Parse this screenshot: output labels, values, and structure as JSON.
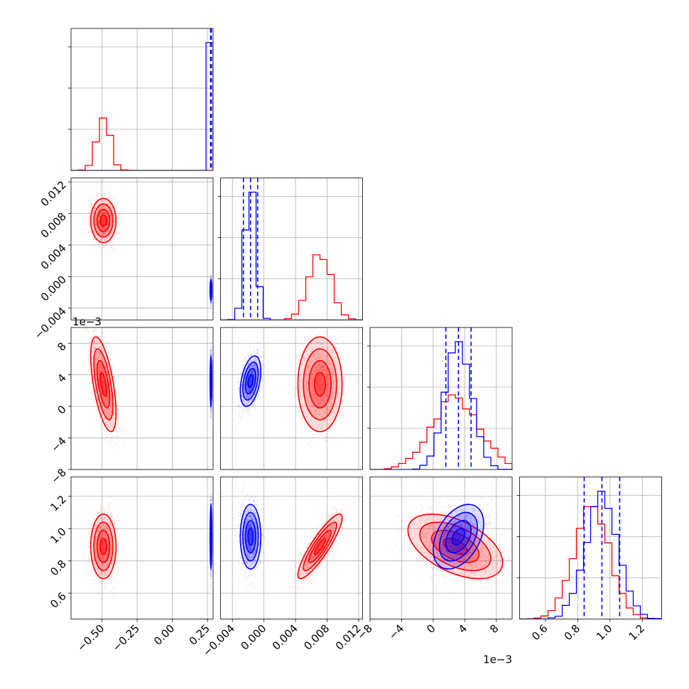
{
  "figure": {
    "width": 970,
    "height": 970
  },
  "colors": {
    "series_a": "#ff0000",
    "series_b": "#0000ff",
    "grid": "#b0b0b0"
  },
  "chart_data": {
    "type": "corner",
    "description_note": "",
    "parameters": [
      {
        "index": 0,
        "range": [
          -0.72,
          0.29
        ],
        "ticks": [
          -0.5,
          -0.25,
          0.0,
          0.25
        ],
        "tick_labels": [
          "−0.50",
          "−0.25",
          "0.00",
          "0.25"
        ],
        "offset_label": ""
      },
      {
        "index": 1,
        "range": [
          -0.0055,
          0.0125
        ],
        "ticks": [
          -0.004,
          0.0,
          0.004,
          0.008,
          0.012
        ],
        "tick_labels": [
          "−0.004",
          "0.000",
          "0.004",
          "0.008",
          "0.012"
        ],
        "offset_label": ""
      },
      {
        "index": 2,
        "range": [
          -8,
          10
        ],
        "ticks": [
          -8,
          -4,
          0,
          4,
          8
        ],
        "tick_labels": [
          "−8",
          "−4",
          "0",
          "4",
          "8"
        ],
        "offset_label": "1e−3"
      },
      {
        "index": 3,
        "range": [
          0.44,
          1.32
        ],
        "ticks": [
          0.6,
          0.8,
          1.0,
          1.2
        ],
        "tick_labels": [
          "0.6",
          "0.8",
          "1.0",
          "1.2"
        ],
        "offset_label": ""
      }
    ],
    "series": [
      {
        "color": "#ff0000",
        "mean": [
          -0.49,
          0.0071,
          2.8,
          0.89
        ],
        "std": [
          0.045,
          0.0014,
          3.0,
          0.1
        ],
        "corr": [
          [
            0,
            2,
            -0.6
          ],
          [
            1,
            3,
            0.88
          ],
          [
            2,
            3,
            -0.5
          ]
        ],
        "quantiles": []
      },
      {
        "color": "#0000ff",
        "mean": [
          0.275,
          -0.0017,
          3.2,
          0.95
        ],
        "std": [
          0.003,
          0.00065,
          1.6,
          0.1
        ],
        "corr": [
          [
            1,
            2,
            0.4
          ],
          [
            2,
            3,
            0.4
          ]
        ],
        "quantiles": [
          [
            0.272,
            0.275,
            0.278
          ],
          [
            -0.0026,
            -0.0017,
            -0.0008
          ],
          [
            1.6,
            3.2,
            4.8
          ],
          [
            0.84,
            0.95,
            1.06
          ]
        ]
      }
    ],
    "grid": true,
    "legend": "none"
  }
}
